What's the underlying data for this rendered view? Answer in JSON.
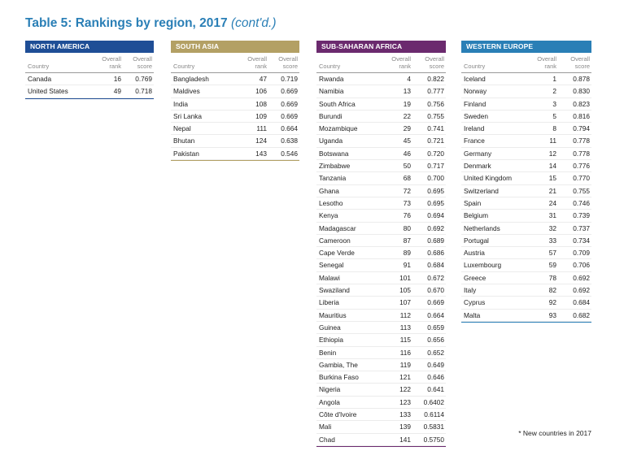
{
  "title": "Table 5: Rankings by region, 2017",
  "title_suffix": "(cont'd.)",
  "column_headers": {
    "country": "Country",
    "rank_1": "Overall",
    "rank_2": "rank",
    "score_1": "Overall",
    "score_2": "score"
  },
  "footnote": "* New countries in 2017",
  "regions": [
    {
      "name": "NORTH AMERICA",
      "color": "#1f4e96",
      "rows": [
        {
          "country": "Canada",
          "rank": "16",
          "score": "0.769"
        },
        {
          "country": "United States",
          "rank": "49",
          "score": "0.718"
        }
      ]
    },
    {
      "name": "SOUTH ASIA",
      "color": "#b3a064",
      "rows": [
        {
          "country": "Bangladesh",
          "rank": "47",
          "score": "0.719"
        },
        {
          "country": "Maldives",
          "rank": "106",
          "score": "0.669"
        },
        {
          "country": "India",
          "rank": "108",
          "score": "0.669"
        },
        {
          "country": "Sri Lanka",
          "rank": "109",
          "score": "0.669"
        },
        {
          "country": "Nepal",
          "rank": "111",
          "score": "0.664"
        },
        {
          "country": "Bhutan",
          "rank": "124",
          "score": "0.638"
        },
        {
          "country": "Pakistan",
          "rank": "143",
          "score": "0.546"
        }
      ]
    },
    {
      "name": "SUB-SAHARAN AFRICA",
      "color": "#6b2a6e",
      "rows": [
        {
          "country": "Rwanda",
          "rank": "4",
          "score": "0.822"
        },
        {
          "country": "Namibia",
          "rank": "13",
          "score": "0.777"
        },
        {
          "country": "South Africa",
          "rank": "19",
          "score": "0.756"
        },
        {
          "country": "Burundi",
          "rank": "22",
          "score": "0.755"
        },
        {
          "country": "Mozambique",
          "rank": "29",
          "score": "0.741"
        },
        {
          "country": "Uganda",
          "rank": "45",
          "score": "0.721"
        },
        {
          "country": "Botswana",
          "rank": "46",
          "score": "0.720"
        },
        {
          "country": "Zimbabwe",
          "rank": "50",
          "score": "0.717"
        },
        {
          "country": "Tanzania",
          "rank": "68",
          "score": "0.700"
        },
        {
          "country": "Ghana",
          "rank": "72",
          "score": "0.695"
        },
        {
          "country": "Lesotho",
          "rank": "73",
          "score": "0.695"
        },
        {
          "country": "Kenya",
          "rank": "76",
          "score": "0.694"
        },
        {
          "country": "Madagascar",
          "rank": "80",
          "score": "0.692"
        },
        {
          "country": "Cameroon",
          "rank": "87",
          "score": "0.689"
        },
        {
          "country": "Cape Verde",
          "rank": "89",
          "score": "0.686"
        },
        {
          "country": "Senegal",
          "rank": "91",
          "score": "0.684"
        },
        {
          "country": "Malawi",
          "rank": "101",
          "score": "0.672"
        },
        {
          "country": "Swaziland",
          "rank": "105",
          "score": "0.670"
        },
        {
          "country": "Liberia",
          "rank": "107",
          "score": "0.669"
        },
        {
          "country": "Mauritius",
          "rank": "112",
          "score": "0.664"
        },
        {
          "country": "Guinea",
          "rank": "113",
          "score": "0.659"
        },
        {
          "country": "Ethiopia",
          "rank": "115",
          "score": "0.656"
        },
        {
          "country": "Benin",
          "rank": "116",
          "score": "0.652"
        },
        {
          "country": "Gambia, The",
          "rank": "119",
          "score": "0.649"
        },
        {
          "country": "Burkina Faso",
          "rank": "121",
          "score": "0.646"
        },
        {
          "country": "Nigeria",
          "rank": "122",
          "score": "0.641"
        },
        {
          "country": "Angola",
          "rank": "123",
          "score": "0.6402"
        },
        {
          "country": "Côte d'Ivoire",
          "rank": "133",
          "score": "0.6114"
        },
        {
          "country": "Mali",
          "rank": "139",
          "score": "0.5831"
        },
        {
          "country": "Chad",
          "rank": "141",
          "score": "0.5750"
        }
      ]
    },
    {
      "name": "WESTERN EUROPE",
      "color": "#2a7fb6",
      "rows": [
        {
          "country": "Iceland",
          "rank": "1",
          "score": "0.878"
        },
        {
          "country": "Norway",
          "rank": "2",
          "score": "0.830"
        },
        {
          "country": "Finland",
          "rank": "3",
          "score": "0.823"
        },
        {
          "country": "Sweden",
          "rank": "5",
          "score": "0.816"
        },
        {
          "country": "Ireland",
          "rank": "8",
          "score": "0.794"
        },
        {
          "country": "France",
          "rank": "11",
          "score": "0.778"
        },
        {
          "country": "Germany",
          "rank": "12",
          "score": "0.778"
        },
        {
          "country": "Denmark",
          "rank": "14",
          "score": "0.776"
        },
        {
          "country": "United Kingdom",
          "rank": "15",
          "score": "0.770"
        },
        {
          "country": "Switzerland",
          "rank": "21",
          "score": "0.755"
        },
        {
          "country": "Spain",
          "rank": "24",
          "score": "0.746"
        },
        {
          "country": "Belgium",
          "rank": "31",
          "score": "0.739"
        },
        {
          "country": "Netherlands",
          "rank": "32",
          "score": "0.737"
        },
        {
          "country": "Portugal",
          "rank": "33",
          "score": "0.734"
        },
        {
          "country": "Austria",
          "rank": "57",
          "score": "0.709"
        },
        {
          "country": "Luxembourg",
          "rank": "59",
          "score": "0.706"
        },
        {
          "country": "Greece",
          "rank": "78",
          "score": "0.692"
        },
        {
          "country": "Italy",
          "rank": "82",
          "score": "0.692"
        },
        {
          "country": "Cyprus",
          "rank": "92",
          "score": "0.684"
        },
        {
          "country": "Malta",
          "rank": "93",
          "score": "0.682"
        }
      ]
    }
  ]
}
